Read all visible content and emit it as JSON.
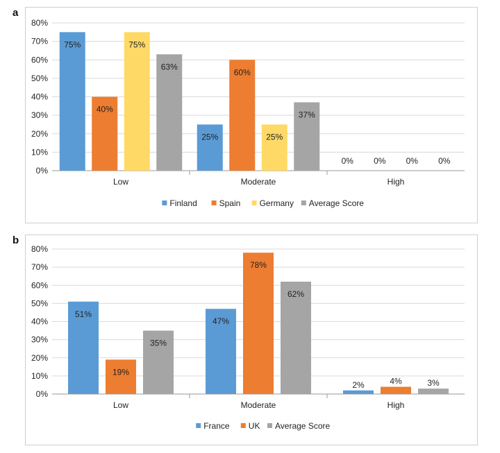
{
  "chart_data": [
    {
      "panel": "a",
      "type": "bar",
      "categories": [
        "Low",
        "Moderate",
        "High"
      ],
      "series": [
        {
          "name": "Finland",
          "values": [
            75,
            25,
            0
          ],
          "color": "#5b9bd5"
        },
        {
          "name": "Spain",
          "values": [
            40,
            60,
            0
          ],
          "color": "#ed7d31"
        },
        {
          "name": "Germany",
          "values": [
            75,
            25,
            0
          ],
          "color": "#ffd966"
        },
        {
          "name": "Average Score",
          "values": [
            63,
            37,
            0
          ],
          "color": "#a5a5a5"
        }
      ],
      "data_labels": [
        [
          "75%",
          "25%",
          "0%"
        ],
        [
          "40%",
          "60%",
          "0%"
        ],
        [
          "75%",
          "25%",
          "0%"
        ],
        [
          "63%",
          "37%",
          "0%"
        ]
      ],
      "ylim": [
        0,
        80
      ],
      "yticks": [
        "0%",
        "10%",
        "20%",
        "30%",
        "40%",
        "50%",
        "60%",
        "70%",
        "80%"
      ],
      "grid": true,
      "legend": "bottom"
    },
    {
      "panel": "b",
      "type": "bar",
      "categories": [
        "Low",
        "Moderate",
        "High"
      ],
      "series": [
        {
          "name": "France",
          "values": [
            51,
            47,
            2
          ],
          "color": "#5b9bd5"
        },
        {
          "name": "UK",
          "values": [
            19,
            78,
            4
          ],
          "color": "#ed7d31"
        },
        {
          "name": "Average Score",
          "values": [
            35,
            62,
            3
          ],
          "color": "#a5a5a5"
        }
      ],
      "data_labels": [
        [
          "51%",
          "47%",
          "2%"
        ],
        [
          "19%",
          "78%",
          "4%"
        ],
        [
          "35%",
          "62%",
          "3%"
        ]
      ],
      "ylim": [
        0,
        80
      ],
      "yticks": [
        "0%",
        "10%",
        "20%",
        "30%",
        "40%",
        "50%",
        "60%",
        "70%",
        "80%"
      ],
      "grid": true,
      "legend": "bottom"
    }
  ]
}
